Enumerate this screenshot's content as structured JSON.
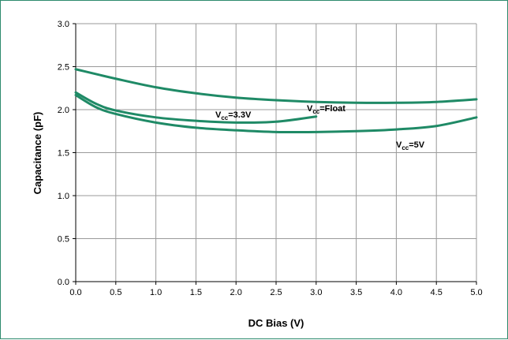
{
  "chart_data": {
    "type": "line",
    "xlabel": "DC Bias (V)",
    "ylabel": "Capacitance (pF)",
    "xlim": [
      0,
      5
    ],
    "ylim": [
      0,
      3
    ],
    "xticks": [
      "0.0",
      "0.5",
      "1.0",
      "1.5",
      "2.0",
      "2.5",
      "3.0",
      "3.5",
      "4.0",
      "4.5",
      "5.0"
    ],
    "yticks": [
      "0.0",
      "0.5",
      "1.0",
      "1.5",
      "2.0",
      "2.5",
      "3.0"
    ],
    "grid": true,
    "line_color": "#1f8a66",
    "series": [
      {
        "label_main": "V",
        "label_sub": "cc",
        "label_rest": "=Float",
        "x": [
          0,
          0.5,
          1.0,
          1.5,
          2.0,
          2.5,
          3.0,
          3.5,
          4.0,
          4.5,
          5.0
        ],
        "y": [
          2.47,
          2.36,
          2.26,
          2.19,
          2.14,
          2.11,
          2.09,
          2.08,
          2.08,
          2.09,
          2.12
        ]
      },
      {
        "label_main": "V",
        "label_sub": "cc",
        "label_rest": "=3.3V",
        "x": [
          0,
          0.25,
          0.5,
          1.0,
          1.5,
          2.0,
          2.5,
          3.0
        ],
        "y": [
          2.2,
          2.07,
          1.99,
          1.91,
          1.87,
          1.85,
          1.86,
          1.92
        ]
      },
      {
        "label_main": "V",
        "label_sub": "cc",
        "label_rest": "=5V",
        "x": [
          0,
          0.25,
          0.5,
          1.0,
          1.5,
          2.0,
          2.5,
          3.0,
          3.5,
          4.0,
          4.5,
          5.0
        ],
        "y": [
          2.17,
          2.03,
          1.95,
          1.85,
          1.79,
          1.76,
          1.74,
          1.74,
          1.75,
          1.77,
          1.81,
          1.91
        ]
      }
    ]
  }
}
